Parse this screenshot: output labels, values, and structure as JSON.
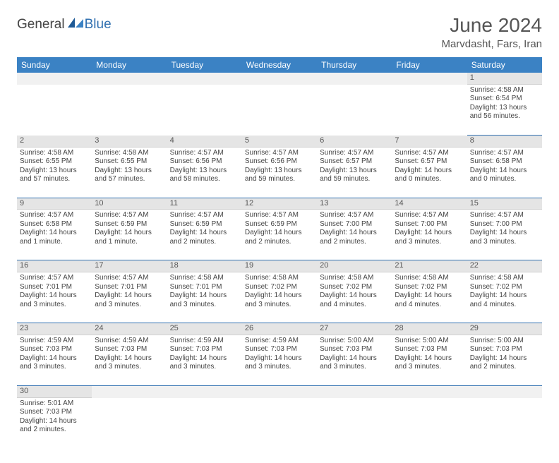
{
  "brand": {
    "part1": "General",
    "part2": "Blue"
  },
  "title": "June 2024",
  "location": "Marvdasht, Fars, Iran",
  "colors": {
    "header_bg": "#3b82c4",
    "header_text": "#ffffff",
    "daynum_bg": "#e5e5e5",
    "row_border": "#2f6fb0",
    "body_text": "#444444",
    "brand_accent": "#2f6fb0"
  },
  "weekdays": [
    "Sunday",
    "Monday",
    "Tuesday",
    "Wednesday",
    "Thursday",
    "Friday",
    "Saturday"
  ],
  "weeks": [
    {
      "days": [
        null,
        null,
        null,
        null,
        null,
        null,
        {
          "n": "1",
          "sunrise": "Sunrise: 4:58 AM",
          "sunset": "Sunset: 6:54 PM",
          "day1": "Daylight: 13 hours",
          "day2": "and 56 minutes."
        }
      ]
    },
    {
      "days": [
        {
          "n": "2",
          "sunrise": "Sunrise: 4:58 AM",
          "sunset": "Sunset: 6:55 PM",
          "day1": "Daylight: 13 hours",
          "day2": "and 57 minutes."
        },
        {
          "n": "3",
          "sunrise": "Sunrise: 4:58 AM",
          "sunset": "Sunset: 6:55 PM",
          "day1": "Daylight: 13 hours",
          "day2": "and 57 minutes."
        },
        {
          "n": "4",
          "sunrise": "Sunrise: 4:57 AM",
          "sunset": "Sunset: 6:56 PM",
          "day1": "Daylight: 13 hours",
          "day2": "and 58 minutes."
        },
        {
          "n": "5",
          "sunrise": "Sunrise: 4:57 AM",
          "sunset": "Sunset: 6:56 PM",
          "day1": "Daylight: 13 hours",
          "day2": "and 59 minutes."
        },
        {
          "n": "6",
          "sunrise": "Sunrise: 4:57 AM",
          "sunset": "Sunset: 6:57 PM",
          "day1": "Daylight: 13 hours",
          "day2": "and 59 minutes."
        },
        {
          "n": "7",
          "sunrise": "Sunrise: 4:57 AM",
          "sunset": "Sunset: 6:57 PM",
          "day1": "Daylight: 14 hours",
          "day2": "and 0 minutes."
        },
        {
          "n": "8",
          "sunrise": "Sunrise: 4:57 AM",
          "sunset": "Sunset: 6:58 PM",
          "day1": "Daylight: 14 hours",
          "day2": "and 0 minutes."
        }
      ]
    },
    {
      "days": [
        {
          "n": "9",
          "sunrise": "Sunrise: 4:57 AM",
          "sunset": "Sunset: 6:58 PM",
          "day1": "Daylight: 14 hours",
          "day2": "and 1 minute."
        },
        {
          "n": "10",
          "sunrise": "Sunrise: 4:57 AM",
          "sunset": "Sunset: 6:59 PM",
          "day1": "Daylight: 14 hours",
          "day2": "and 1 minute."
        },
        {
          "n": "11",
          "sunrise": "Sunrise: 4:57 AM",
          "sunset": "Sunset: 6:59 PM",
          "day1": "Daylight: 14 hours",
          "day2": "and 2 minutes."
        },
        {
          "n": "12",
          "sunrise": "Sunrise: 4:57 AM",
          "sunset": "Sunset: 6:59 PM",
          "day1": "Daylight: 14 hours",
          "day2": "and 2 minutes."
        },
        {
          "n": "13",
          "sunrise": "Sunrise: 4:57 AM",
          "sunset": "Sunset: 7:00 PM",
          "day1": "Daylight: 14 hours",
          "day2": "and 2 minutes."
        },
        {
          "n": "14",
          "sunrise": "Sunrise: 4:57 AM",
          "sunset": "Sunset: 7:00 PM",
          "day1": "Daylight: 14 hours",
          "day2": "and 3 minutes."
        },
        {
          "n": "15",
          "sunrise": "Sunrise: 4:57 AM",
          "sunset": "Sunset: 7:00 PM",
          "day1": "Daylight: 14 hours",
          "day2": "and 3 minutes."
        }
      ]
    },
    {
      "days": [
        {
          "n": "16",
          "sunrise": "Sunrise: 4:57 AM",
          "sunset": "Sunset: 7:01 PM",
          "day1": "Daylight: 14 hours",
          "day2": "and 3 minutes."
        },
        {
          "n": "17",
          "sunrise": "Sunrise: 4:57 AM",
          "sunset": "Sunset: 7:01 PM",
          "day1": "Daylight: 14 hours",
          "day2": "and 3 minutes."
        },
        {
          "n": "18",
          "sunrise": "Sunrise: 4:58 AM",
          "sunset": "Sunset: 7:01 PM",
          "day1": "Daylight: 14 hours",
          "day2": "and 3 minutes."
        },
        {
          "n": "19",
          "sunrise": "Sunrise: 4:58 AM",
          "sunset": "Sunset: 7:02 PM",
          "day1": "Daylight: 14 hours",
          "day2": "and 3 minutes."
        },
        {
          "n": "20",
          "sunrise": "Sunrise: 4:58 AM",
          "sunset": "Sunset: 7:02 PM",
          "day1": "Daylight: 14 hours",
          "day2": "and 4 minutes."
        },
        {
          "n": "21",
          "sunrise": "Sunrise: 4:58 AM",
          "sunset": "Sunset: 7:02 PM",
          "day1": "Daylight: 14 hours",
          "day2": "and 4 minutes."
        },
        {
          "n": "22",
          "sunrise": "Sunrise: 4:58 AM",
          "sunset": "Sunset: 7:02 PM",
          "day1": "Daylight: 14 hours",
          "day2": "and 4 minutes."
        }
      ]
    },
    {
      "days": [
        {
          "n": "23",
          "sunrise": "Sunrise: 4:59 AM",
          "sunset": "Sunset: 7:03 PM",
          "day1": "Daylight: 14 hours",
          "day2": "and 3 minutes."
        },
        {
          "n": "24",
          "sunrise": "Sunrise: 4:59 AM",
          "sunset": "Sunset: 7:03 PM",
          "day1": "Daylight: 14 hours",
          "day2": "and 3 minutes."
        },
        {
          "n": "25",
          "sunrise": "Sunrise: 4:59 AM",
          "sunset": "Sunset: 7:03 PM",
          "day1": "Daylight: 14 hours",
          "day2": "and 3 minutes."
        },
        {
          "n": "26",
          "sunrise": "Sunrise: 4:59 AM",
          "sunset": "Sunset: 7:03 PM",
          "day1": "Daylight: 14 hours",
          "day2": "and 3 minutes."
        },
        {
          "n": "27",
          "sunrise": "Sunrise: 5:00 AM",
          "sunset": "Sunset: 7:03 PM",
          "day1": "Daylight: 14 hours",
          "day2": "and 3 minutes."
        },
        {
          "n": "28",
          "sunrise": "Sunrise: 5:00 AM",
          "sunset": "Sunset: 7:03 PM",
          "day1": "Daylight: 14 hours",
          "day2": "and 3 minutes."
        },
        {
          "n": "29",
          "sunrise": "Sunrise: 5:00 AM",
          "sunset": "Sunset: 7:03 PM",
          "day1": "Daylight: 14 hours",
          "day2": "and 2 minutes."
        }
      ]
    },
    {
      "days": [
        {
          "n": "30",
          "sunrise": "Sunrise: 5:01 AM",
          "sunset": "Sunset: 7:03 PM",
          "day1": "Daylight: 14 hours",
          "day2": "and 2 minutes."
        },
        null,
        null,
        null,
        null,
        null,
        null
      ]
    }
  ]
}
